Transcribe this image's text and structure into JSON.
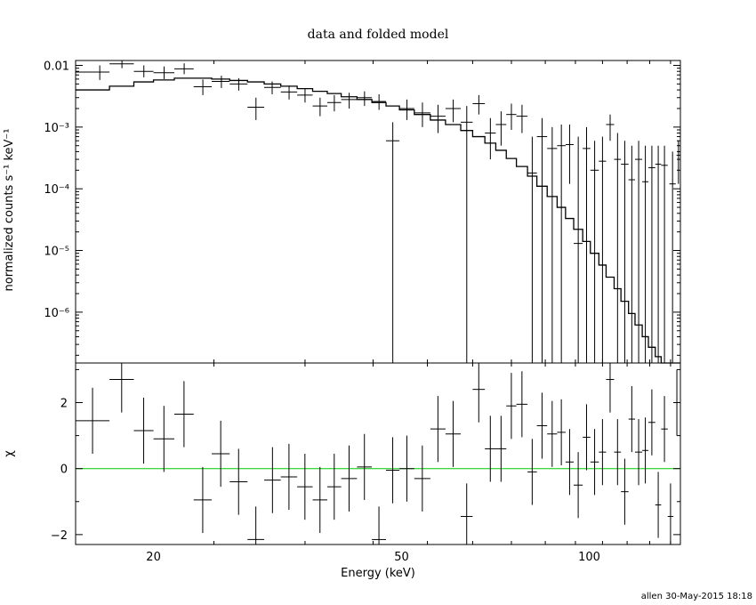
{
  "chart_data": [
    {
      "type": "scatter",
      "panel": "upper",
      "title": "data and folded model",
      "xlabel": "",
      "ylabel": "normalized counts s⁻¹ keV⁻¹",
      "xscale": "log",
      "yscale": "log",
      "xlim": [
        15,
        140
      ],
      "ylim": [
        1.5e-07,
        0.012
      ],
      "x_ticks": [
        20,
        50,
        100
      ],
      "y_ticks": [
        {
          "value": 0.01,
          "label": "0.01"
        },
        {
          "value": 0.001,
          "label": "10⁻³"
        },
        {
          "value": 0.0001,
          "label": "10⁻⁴"
        },
        {
          "value": 1e-05,
          "label": "10⁻⁵"
        },
        {
          "value": 1e-06,
          "label": "10⁻⁶"
        }
      ],
      "series": [
        {
          "kind": "data",
          "points": [
            {
              "x": 16.4,
              "xlo": 15.0,
              "xhi": 17.0,
              "y": 0.0078,
              "ylo": 0.0058,
              "yhi": 0.01
            },
            {
              "x": 17.8,
              "xlo": 17.0,
              "xhi": 18.6,
              "y": 0.0106,
              "ylo": 0.009,
              "yhi": 0.0125
            },
            {
              "x": 19.3,
              "xlo": 18.6,
              "xhi": 20.0,
              "y": 0.008,
              "ylo": 0.0064,
              "yhi": 0.01
            },
            {
              "x": 20.8,
              "xlo": 20.0,
              "xhi": 21.6,
              "y": 0.0076,
              "ylo": 0.006,
              "yhi": 0.0096
            },
            {
              "x": 22.4,
              "xlo": 21.6,
              "xhi": 23.2,
              "y": 0.0088,
              "ylo": 0.0072,
              "yhi": 0.0108
            },
            {
              "x": 24.0,
              "xlo": 23.2,
              "xhi": 24.8,
              "y": 0.0045,
              "ylo": 0.0033,
              "yhi": 0.0059
            },
            {
              "x": 25.7,
              "xlo": 24.8,
              "xhi": 26.5,
              "y": 0.0055,
              "ylo": 0.0043,
              "yhi": 0.0068
            },
            {
              "x": 27.4,
              "xlo": 26.5,
              "xhi": 28.3,
              "y": 0.005,
              "ylo": 0.0039,
              "yhi": 0.0062
            },
            {
              "x": 29.2,
              "xlo": 28.3,
              "xhi": 30.1,
              "y": 0.0021,
              "ylo": 0.0013,
              "yhi": 0.003
            },
            {
              "x": 31.0,
              "xlo": 30.1,
              "xhi": 32.0,
              "y": 0.0044,
              "ylo": 0.0034,
              "yhi": 0.0055
            },
            {
              "x": 33.0,
              "xlo": 32.0,
              "xhi": 34.0,
              "y": 0.0037,
              "ylo": 0.0028,
              "yhi": 0.0047
            },
            {
              "x": 35.0,
              "xlo": 34.0,
              "xhi": 36.0,
              "y": 0.0033,
              "ylo": 0.0025,
              "yhi": 0.0042
            },
            {
              "x": 37.0,
              "xlo": 36.0,
              "xhi": 38.0,
              "y": 0.0022,
              "ylo": 0.0015,
              "yhi": 0.003
            },
            {
              "x": 39.0,
              "xlo": 38.0,
              "xhi": 40.0,
              "y": 0.0025,
              "ylo": 0.0018,
              "yhi": 0.0033
            },
            {
              "x": 41.2,
              "xlo": 40.0,
              "xhi": 42.4,
              "y": 0.0028,
              "ylo": 0.002,
              "yhi": 0.0036
            },
            {
              "x": 43.6,
              "xlo": 42.4,
              "xhi": 44.8,
              "y": 0.003,
              "ylo": 0.0022,
              "yhi": 0.0038
            },
            {
              "x": 46.0,
              "xlo": 44.8,
              "xhi": 47.2,
              "y": 0.0026,
              "ylo": 0.0019,
              "yhi": 0.0034
            },
            {
              "x": 48.4,
              "xlo": 47.2,
              "xhi": 49.6,
              "y": 0.0006,
              "ylo": 1.5e-07,
              "yhi": 0.0012
            },
            {
              "x": 51.0,
              "xlo": 49.6,
              "xhi": 52.4,
              "y": 0.002,
              "ylo": 0.0013,
              "yhi": 0.0028
            },
            {
              "x": 54.0,
              "xlo": 52.4,
              "xhi": 55.6,
              "y": 0.0017,
              "ylo": 0.001,
              "yhi": 0.0025
            },
            {
              "x": 57.2,
              "xlo": 55.6,
              "xhi": 58.8,
              "y": 0.0015,
              "ylo": 0.0008,
              "yhi": 0.0023
            },
            {
              "x": 60.5,
              "xlo": 58.8,
              "xhi": 62.2,
              "y": 0.002,
              "ylo": 0.0012,
              "yhi": 0.0028
            },
            {
              "x": 63.6,
              "xlo": 62.2,
              "xhi": 65.0,
              "y": 0.0012,
              "ylo": 1.5e-07,
              "yhi": 0.0022
            },
            {
              "x": 66.5,
              "xlo": 65.0,
              "xhi": 68.0,
              "y": 0.0024,
              "ylo": 0.0016,
              "yhi": 0.0033
            },
            {
              "x": 69.4,
              "xlo": 68.0,
              "xhi": 70.8,
              "y": 0.0008,
              "ylo": 0.0003,
              "yhi": 0.0014
            },
            {
              "x": 72.2,
              "xlo": 70.8,
              "xhi": 73.6,
              "y": 0.0011,
              "ylo": 0.0005,
              "yhi": 0.0018
            },
            {
              "x": 75.0,
              "xlo": 73.6,
              "xhi": 76.4,
              "y": 0.0016,
              "ylo": 0.0009,
              "yhi": 0.0024
            },
            {
              "x": 78.0,
              "xlo": 76.4,
              "xhi": 79.6,
              "y": 0.0015,
              "ylo": 0.0008,
              "yhi": 0.0023
            },
            {
              "x": 81.0,
              "xlo": 79.6,
              "xhi": 82.4,
              "y": 0.00018,
              "ylo": 1.5e-07,
              "yhi": 0.0007
            },
            {
              "x": 84.0,
              "xlo": 82.4,
              "xhi": 85.6,
              "y": 0.0007,
              "ylo": 1.5e-07,
              "yhi": 0.0014
            },
            {
              "x": 87.2,
              "xlo": 85.6,
              "xhi": 88.8,
              "y": 0.00045,
              "ylo": 1.5e-07,
              "yhi": 0.001
            },
            {
              "x": 90.2,
              "xlo": 88.8,
              "xhi": 91.6,
              "y": 0.0005,
              "ylo": 1.5e-07,
              "yhi": 0.0011
            },
            {
              "x": 93.0,
              "xlo": 91.6,
              "xhi": 94.4,
              "y": 0.00052,
              "ylo": 0.00012,
              "yhi": 0.0011
            },
            {
              "x": 96.0,
              "xlo": 94.4,
              "xhi": 97.6,
              "y": 1.3e-05,
              "ylo": 1.5e-07,
              "yhi": 0.0007
            },
            {
              "x": 99.0,
              "xlo": 97.6,
              "xhi": 100.4,
              "y": 0.00045,
              "ylo": 1.5e-07,
              "yhi": 0.001
            },
            {
              "x": 102.0,
              "xlo": 100.4,
              "xhi": 103.6,
              "y": 0.0002,
              "ylo": 1.5e-07,
              "yhi": 0.0006
            },
            {
              "x": 105.0,
              "xlo": 103.6,
              "xhi": 106.4,
              "y": 0.00028,
              "ylo": 1.5e-07,
              "yhi": 0.0007
            },
            {
              "x": 108.0,
              "xlo": 106.4,
              "xhi": 109.6,
              "y": 0.0011,
              "ylo": 0.0006,
              "yhi": 0.0016
            },
            {
              "x": 111.0,
              "xlo": 109.6,
              "xhi": 112.4,
              "y": 0.0003,
              "ylo": 1.5e-07,
              "yhi": 0.0008
            },
            {
              "x": 114.0,
              "xlo": 112.4,
              "xhi": 115.6,
              "y": 0.00025,
              "ylo": 1.5e-07,
              "yhi": 0.0006
            },
            {
              "x": 117.0,
              "xlo": 115.6,
              "xhi": 118.4,
              "y": 0.00014,
              "ylo": 1.5e-07,
              "yhi": 0.0005
            },
            {
              "x": 120.0,
              "xlo": 118.4,
              "xhi": 121.6,
              "y": 0.0003,
              "ylo": 1.5e-07,
              "yhi": 0.0006
            },
            {
              "x": 123.0,
              "xlo": 121.6,
              "xhi": 124.4,
              "y": 0.00013,
              "ylo": 1.5e-07,
              "yhi": 0.0005
            },
            {
              "x": 126.0,
              "xlo": 124.4,
              "xhi": 127.6,
              "y": 0.00022,
              "ylo": 1.5e-07,
              "yhi": 0.0005
            },
            {
              "x": 129.0,
              "xlo": 127.6,
              "xhi": 130.4,
              "y": 0.00025,
              "ylo": 1.5e-07,
              "yhi": 0.0005
            },
            {
              "x": 132.0,
              "xlo": 130.4,
              "xhi": 133.6,
              "y": 0.00024,
              "ylo": 1.5e-07,
              "yhi": 0.0005
            },
            {
              "x": 136.0,
              "xlo": 134.4,
              "xhi": 137.6,
              "y": 0.00012,
              "ylo": 1.5e-07,
              "yhi": 0.0004
            },
            {
              "x": 139.0,
              "xlo": 138.0,
              "xhi": 140.0,
              "y": 0.00035,
              "ylo": 0.00012,
              "yhi": 0.0006
            }
          ]
        },
        {
          "kind": "model-step",
          "steps": [
            [
              15.0,
              0.004
            ],
            [
              17.0,
              0.0046
            ],
            [
              18.6,
              0.0054
            ],
            [
              20.0,
              0.0058
            ],
            [
              21.6,
              0.0062
            ],
            [
              23.2,
              0.0062
            ],
            [
              24.8,
              0.006
            ],
            [
              26.5,
              0.0057
            ],
            [
              28.3,
              0.0054
            ],
            [
              30.1,
              0.005
            ],
            [
              32.0,
              0.0046
            ],
            [
              34.0,
              0.0042
            ],
            [
              36.0,
              0.0038
            ],
            [
              38.0,
              0.0035
            ],
            [
              40.0,
              0.0031
            ],
            [
              42.4,
              0.0028
            ],
            [
              44.8,
              0.0025
            ],
            [
              47.2,
              0.0022
            ],
            [
              49.6,
              0.0019
            ],
            [
              52.4,
              0.0016
            ],
            [
              55.6,
              0.0013
            ],
            [
              58.8,
              0.0011
            ],
            [
              62.2,
              0.00088
            ],
            [
              65.0,
              0.0007
            ],
            [
              68.0,
              0.00055
            ],
            [
              70.8,
              0.00042
            ],
            [
              73.6,
              0.00031
            ],
            [
              76.4,
              0.00023
            ],
            [
              79.6,
              0.00016
            ],
            [
              82.4,
              0.00011
            ],
            [
              85.6,
              7.5e-05
            ],
            [
              88.8,
              5e-05
            ],
            [
              91.6,
              3.3e-05
            ],
            [
              94.4,
              2.2e-05
            ],
            [
              97.6,
              1.4e-05
            ],
            [
              100.4,
              9e-06
            ],
            [
              103.6,
              5.8e-06
            ],
            [
              106.4,
              3.7e-06
            ],
            [
              109.6,
              2.4e-06
            ],
            [
              112.4,
              1.5e-06
            ],
            [
              115.6,
              9.5e-07
            ],
            [
              118.4,
              6.2e-07
            ],
            [
              121.6,
              4e-07
            ],
            [
              124.4,
              2.7e-07
            ],
            [
              127.6,
              1.9e-07
            ],
            [
              130.4,
              1.5e-07
            ]
          ]
        }
      ]
    },
    {
      "type": "scatter",
      "panel": "lower",
      "xlabel": "Energy (keV)",
      "ylabel": "χ",
      "xscale": "log",
      "xlim": [
        15,
        140
      ],
      "ylim": [
        -2.3,
        3.2
      ],
      "x_ticks": [
        20,
        50,
        100
      ],
      "y_ticks": [
        {
          "value": 2,
          "label": "2"
        },
        {
          "value": 0,
          "label": "0"
        },
        {
          "value": -2,
          "label": "−2"
        }
      ],
      "zero_line_color": "#00cc00",
      "residuals": [
        [
          15.0,
          17.0,
          1.45
        ],
        [
          17.0,
          18.6,
          2.7
        ],
        [
          18.6,
          20.0,
          1.15
        ],
        [
          20.0,
          21.6,
          0.9
        ],
        [
          21.6,
          23.2,
          1.65
        ],
        [
          23.2,
          24.8,
          -0.95
        ],
        [
          24.8,
          26.5,
          0.45
        ],
        [
          26.5,
          28.3,
          -0.4
        ],
        [
          28.3,
          30.1,
          -2.15
        ],
        [
          30.1,
          32.0,
          -0.35
        ],
        [
          32.0,
          34.0,
          -0.25
        ],
        [
          34.0,
          36.0,
          -0.55
        ],
        [
          36.0,
          38.0,
          -0.95
        ],
        [
          38.0,
          40.0,
          -0.55
        ],
        [
          40.0,
          42.4,
          -0.3
        ],
        [
          42.4,
          44.8,
          0.05
        ],
        [
          44.8,
          47.2,
          -2.15
        ],
        [
          47.2,
          49.6,
          -0.05
        ],
        [
          49.6,
          52.4,
          0.0
        ],
        [
          52.4,
          55.6,
          -0.3
        ],
        [
          55.6,
          58.8,
          1.2
        ],
        [
          58.8,
          62.2,
          1.05
        ],
        [
          62.2,
          65.0,
          -1.45
        ],
        [
          65.0,
          68.0,
          2.4
        ],
        [
          68.0,
          70.8,
          0.6
        ],
        [
          70.8,
          73.6,
          0.6
        ],
        [
          73.6,
          76.4,
          1.9
        ],
        [
          76.4,
          79.6,
          1.95
        ],
        [
          79.6,
          82.4,
          -0.1
        ],
        [
          82.4,
          85.6,
          1.3
        ],
        [
          85.6,
          88.8,
          1.05
        ],
        [
          88.8,
          91.6,
          1.1
        ],
        [
          91.6,
          94.4,
          0.2
        ],
        [
          94.4,
          97.6,
          -0.5
        ],
        [
          97.6,
          100.4,
          0.95
        ],
        [
          100.4,
          103.6,
          0.2
        ],
        [
          103.6,
          106.4,
          0.5
        ],
        [
          106.4,
          109.6,
          2.7
        ],
        [
          109.6,
          112.4,
          0.5
        ],
        [
          112.4,
          115.6,
          -0.7
        ],
        [
          115.6,
          118.4,
          1.5
        ],
        [
          118.4,
          121.6,
          0.5
        ],
        [
          121.6,
          124.4,
          0.55
        ],
        [
          124.4,
          127.6,
          1.4
        ],
        [
          127.6,
          130.4,
          -1.1
        ],
        [
          130.4,
          133.6,
          1.2
        ],
        [
          133.6,
          136.4,
          -1.45
        ],
        [
          136.4,
          140.0,
          2.0
        ]
      ]
    }
  ],
  "footer": "allen 30-May-2015 18:18"
}
